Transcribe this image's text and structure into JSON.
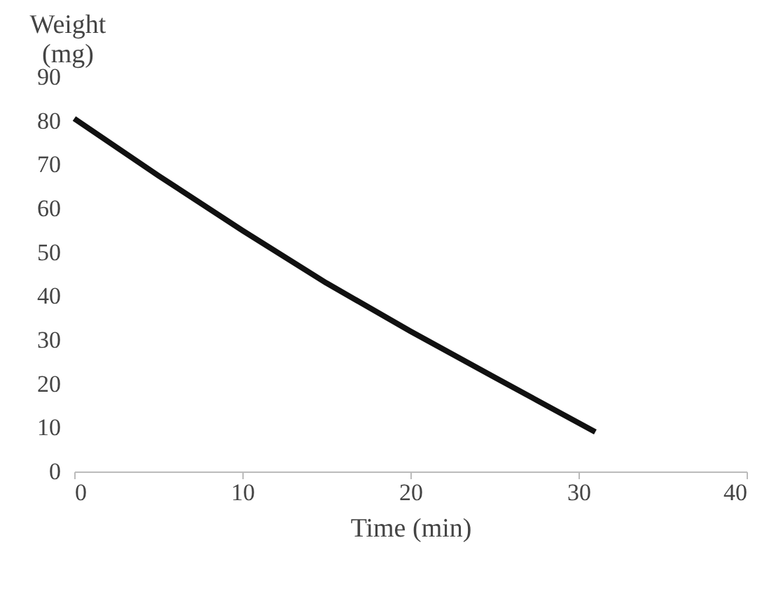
{
  "chart_data": {
    "type": "line",
    "xlabel": "Time (min)",
    "ylabel": "Weight (mg)",
    "x": [
      0,
      5,
      10,
      15,
      20,
      25,
      31
    ],
    "series": [
      {
        "color": "#111111",
        "values": [
          80.5,
          67.5,
          55,
          43,
          32,
          21.5,
          9
        ]
      }
    ],
    "xlim": [
      0,
      40
    ],
    "xticks": [
      0,
      10,
      20,
      30,
      40
    ],
    "ylim": [
      0,
      90
    ],
    "yticks": [
      0,
      10,
      20,
      30,
      40,
      50,
      60,
      70,
      80,
      90
    ],
    "grid": false,
    "legend": false,
    "marker": "none",
    "line_style": "solid"
  }
}
